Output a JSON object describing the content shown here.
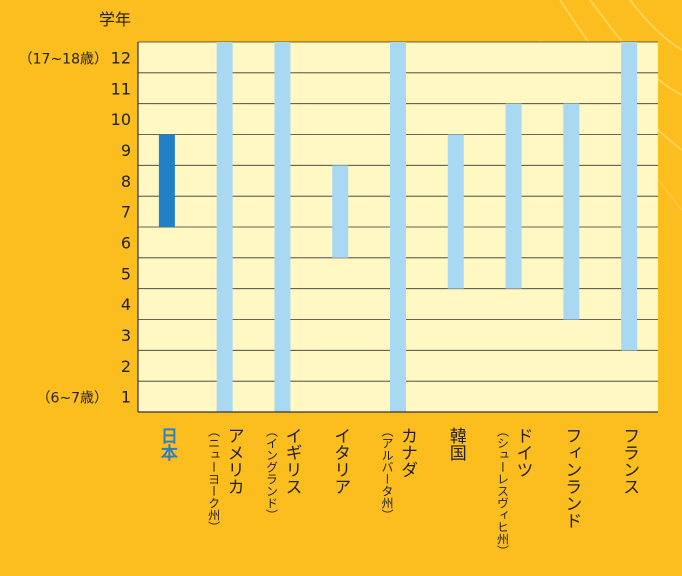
{
  "chart_data": {
    "type": "bar",
    "ylabel": "学年",
    "y_ticks": [
      1,
      2,
      3,
      4,
      5,
      6,
      7,
      8,
      9,
      10,
      11,
      12
    ],
    "y_tick_notes": {
      "1": "（6~7歳）",
      "12": "（17~18歳）"
    },
    "ylim": [
      0,
      12
    ],
    "categories": [
      {
        "name": "日本",
        "sub": "",
        "highlight": true
      },
      {
        "name": "アメリカ",
        "sub": "（ニューヨーク州）",
        "highlight": false
      },
      {
        "name": "イギリス",
        "sub": "（イングランド）",
        "highlight": false
      },
      {
        "name": "イタリア",
        "sub": "",
        "highlight": false
      },
      {
        "name": "カナダ",
        "sub": "（アルバータ州）",
        "highlight": false
      },
      {
        "name": "韓国",
        "sub": "",
        "highlight": false
      },
      {
        "name": "ドイツ",
        "sub": "（シューレスヴィヒ州）",
        "highlight": false
      },
      {
        "name": "フィンランド",
        "sub": "",
        "highlight": false
      },
      {
        "name": "フランス",
        "sub": "",
        "highlight": false
      }
    ],
    "ranges": [
      {
        "from": 7,
        "to": 9
      },
      {
        "from": 1,
        "to": 12
      },
      {
        "from": 1,
        "to": 12
      },
      {
        "from": 6,
        "to": 8
      },
      {
        "from": 1,
        "to": 12
      },
      {
        "from": 5,
        "to": 9
      },
      {
        "from": 5,
        "to": 10
      },
      {
        "from": 4,
        "to": 10
      },
      {
        "from": 3,
        "to": 12
      }
    ],
    "colors": {
      "background": "#FCBD1F",
      "plot_area": "#FFF8C2",
      "bar": "#A9D8F2",
      "bar_highlight": "#2180C6",
      "grid": "#333333",
      "label_highlight": "#2E7FC4"
    },
    "grid": true
  }
}
